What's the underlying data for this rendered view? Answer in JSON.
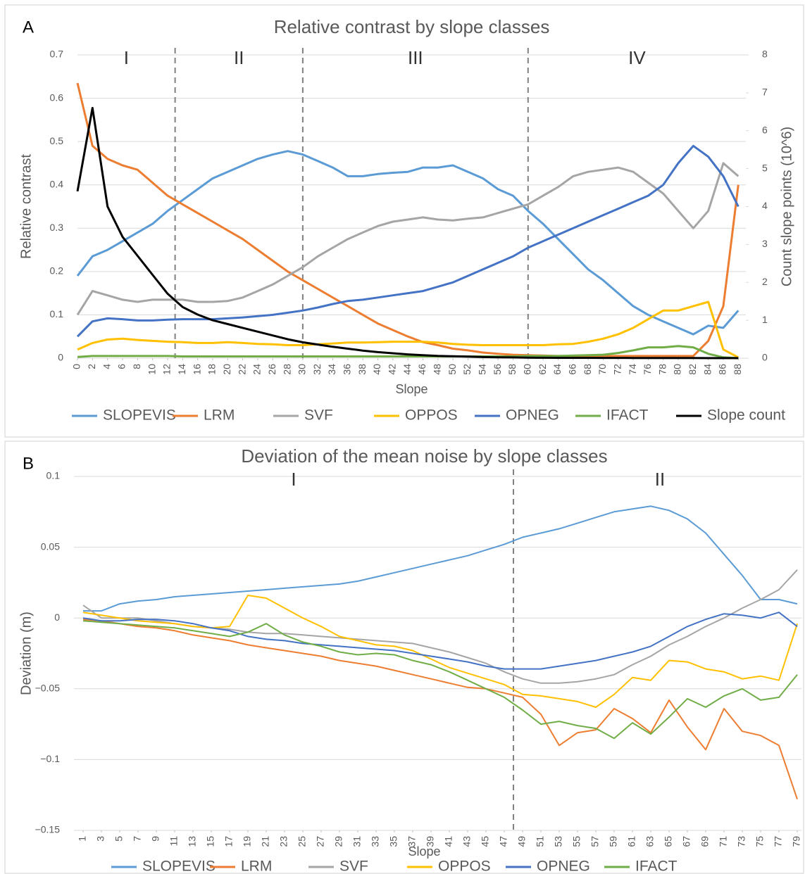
{
  "chart_data": [
    {
      "type": "line",
      "panel_label": "A",
      "title": "Relative contrast by slope classes",
      "x_label": "Slope",
      "y_label": "Relative contrast",
      "y2_label": "Count slope points (10^6)",
      "x": [
        0,
        2,
        4,
        6,
        8,
        10,
        12,
        14,
        16,
        18,
        20,
        22,
        24,
        26,
        28,
        30,
        32,
        34,
        36,
        38,
        40,
        42,
        44,
        46,
        48,
        50,
        52,
        54,
        56,
        58,
        60,
        62,
        64,
        66,
        68,
        70,
        72,
        74,
        76,
        78,
        80,
        82,
        84,
        86,
        88
      ],
      "xlim": [
        0,
        89
      ],
      "xticks": [
        0,
        2,
        4,
        6,
        8,
        10,
        12,
        14,
        16,
        18,
        20,
        22,
        24,
        26,
        28,
        30,
        32,
        34,
        36,
        38,
        40,
        42,
        44,
        46,
        48,
        50,
        52,
        54,
        56,
        58,
        60,
        62,
        64,
        66,
        68,
        70,
        72,
        74,
        76,
        78,
        80,
        82,
        84,
        86,
        88
      ],
      "ylim": [
        0,
        0.7
      ],
      "yticks": [
        0,
        0.1,
        0.2,
        0.3,
        0.4,
        0.5,
        0.6,
        0.7
      ],
      "y2lim": [
        0,
        8
      ],
      "y2ticks": [
        0,
        1,
        2,
        3,
        4,
        5,
        6,
        7,
        8
      ],
      "grid": true,
      "dividers": [
        13,
        30,
        60
      ],
      "class_labels": [
        "I",
        "II",
        "III",
        "IV"
      ],
      "series": [
        {
          "name": "SLOPEVIS",
          "color": "#5b9bd5",
          "values": [
            0.19,
            0.235,
            0.25,
            0.27,
            0.29,
            0.31,
            0.34,
            0.365,
            0.39,
            0.415,
            0.43,
            0.445,
            0.46,
            0.47,
            0.478,
            0.47,
            0.455,
            0.44,
            0.42,
            0.42,
            0.425,
            0.428,
            0.43,
            0.44,
            0.44,
            0.445,
            0.43,
            0.415,
            0.39,
            0.375,
            0.34,
            0.31,
            0.275,
            0.24,
            0.205,
            0.18,
            0.15,
            0.12,
            0.1,
            0.085,
            0.07,
            0.055,
            0.075,
            0.07,
            0.11
          ]
        },
        {
          "name": "LRM",
          "color": "#ed7d31",
          "values": [
            0.635,
            0.49,
            0.46,
            0.445,
            0.435,
            0.405,
            0.375,
            0.355,
            0.335,
            0.315,
            0.295,
            0.275,
            0.25,
            0.225,
            0.2,
            0.18,
            0.16,
            0.14,
            0.12,
            0.1,
            0.08,
            0.065,
            0.05,
            0.037,
            0.03,
            0.022,
            0.018,
            0.013,
            0.01,
            0.008,
            0.007,
            0.006,
            0.005,
            0.005,
            0.005,
            0.005,
            0.005,
            0.005,
            0.005,
            0.005,
            0.005,
            0.005,
            0.04,
            0.12,
            0.4
          ]
        },
        {
          "name": "SVF",
          "color": "#a5a5a5",
          "values": [
            0.1,
            0.155,
            0.145,
            0.135,
            0.13,
            0.135,
            0.135,
            0.135,
            0.13,
            0.13,
            0.132,
            0.14,
            0.155,
            0.17,
            0.19,
            0.21,
            0.235,
            0.255,
            0.275,
            0.29,
            0.305,
            0.315,
            0.32,
            0.325,
            0.32,
            0.318,
            0.322,
            0.325,
            0.335,
            0.345,
            0.355,
            0.375,
            0.395,
            0.42,
            0.43,
            0.435,
            0.44,
            0.43,
            0.405,
            0.38,
            0.34,
            0.3,
            0.34,
            0.45,
            0.42
          ]
        },
        {
          "name": "OPPOS",
          "color": "#ffc000",
          "values": [
            0.02,
            0.035,
            0.043,
            0.045,
            0.042,
            0.04,
            0.038,
            0.037,
            0.035,
            0.035,
            0.037,
            0.035,
            0.033,
            0.032,
            0.03,
            0.03,
            0.032,
            0.034,
            0.036,
            0.036,
            0.037,
            0.038,
            0.038,
            0.038,
            0.036,
            0.033,
            0.031,
            0.03,
            0.03,
            0.03,
            0.03,
            0.03,
            0.032,
            0.033,
            0.038,
            0.045,
            0.055,
            0.07,
            0.09,
            0.11,
            0.11,
            0.12,
            0.13,
            0.02,
            0.002
          ]
        },
        {
          "name": "OPNEG",
          "color": "#4472c4",
          "values": [
            0.05,
            0.085,
            0.092,
            0.09,
            0.087,
            0.087,
            0.089,
            0.09,
            0.09,
            0.09,
            0.092,
            0.094,
            0.097,
            0.1,
            0.105,
            0.11,
            0.117,
            0.125,
            0.132,
            0.135,
            0.14,
            0.145,
            0.15,
            0.155,
            0.165,
            0.175,
            0.19,
            0.205,
            0.22,
            0.235,
            0.255,
            0.27,
            0.285,
            0.3,
            0.315,
            0.33,
            0.345,
            0.36,
            0.375,
            0.4,
            0.45,
            0.49,
            0.465,
            0.42,
            0.35
          ]
        },
        {
          "name": "IFACT",
          "color": "#70ad47",
          "values": [
            0.003,
            0.005,
            0.005,
            0.005,
            0.005,
            0.005,
            0.005,
            0.004,
            0.004,
            0.004,
            0.004,
            0.004,
            0.004,
            0.004,
            0.004,
            0.004,
            0.004,
            0.004,
            0.004,
            0.004,
            0.004,
            0.004,
            0.004,
            0.004,
            0.004,
            0.004,
            0.004,
            0.004,
            0.004,
            0.004,
            0.005,
            0.005,
            0.005,
            0.006,
            0.007,
            0.008,
            0.012,
            0.018,
            0.025,
            0.025,
            0.028,
            0.025,
            0.01,
            0.002,
            0
          ]
        },
        {
          "name": "Slope count",
          "color": "#000000",
          "axis": "y2",
          "values": [
            4.4,
            6.6,
            4.0,
            3.2,
            2.7,
            2.2,
            1.7,
            1.35,
            1.15,
            1.0,
            0.9,
            0.8,
            0.7,
            0.6,
            0.5,
            0.42,
            0.36,
            0.3,
            0.25,
            0.2,
            0.16,
            0.13,
            0.1,
            0.08,
            0.06,
            0.05,
            0.04,
            0.03,
            0.025,
            0.02,
            0.015,
            0.012,
            0.01,
            0.01,
            0.01,
            0.008,
            0.008,
            0.006,
            0.005,
            0.005,
            0.004,
            0.003,
            0.002,
            0.002,
            0.001
          ]
        }
      ]
    },
    {
      "type": "line",
      "panel_label": "B",
      "title": "Deviation of the mean noise by slope classes",
      "x_label": "Slope",
      "y_label": "Deviation (m)",
      "x": [
        1,
        3,
        5,
        7,
        9,
        11,
        13,
        15,
        17,
        19,
        21,
        23,
        25,
        27,
        29,
        31,
        33,
        35,
        37,
        39,
        41,
        43,
        45,
        47,
        49,
        51,
        53,
        55,
        57,
        59,
        61,
        63,
        65,
        67,
        69,
        71,
        73,
        75,
        77,
        79
      ],
      "xlim": [
        0,
        80
      ],
      "xticks": [
        1,
        3,
        5,
        7,
        9,
        11,
        13,
        15,
        17,
        19,
        21,
        23,
        25,
        27,
        29,
        31,
        33,
        35,
        37,
        39,
        41,
        43,
        45,
        47,
        49,
        51,
        53,
        55,
        57,
        59,
        61,
        63,
        65,
        67,
        69,
        71,
        73,
        75,
        77,
        79
      ],
      "ylim": [
        -0.15,
        0.1
      ],
      "yticks": [
        {
          "value": -0.15,
          "label": "−0.15"
        },
        {
          "value": -0.1,
          "label": "−0.1"
        },
        {
          "value": -0.05,
          "label": "−0.05"
        },
        0,
        0.05,
        0.1
      ],
      "grid": true,
      "dividers": [
        48
      ],
      "class_labels": [
        "I",
        "II"
      ],
      "series": [
        {
          "name": "SLOPEVIS",
          "color": "#5b9bd5",
          "values": [
            0.005,
            0.005,
            0.01,
            0.012,
            0.013,
            0.015,
            0.016,
            0.017,
            0.018,
            0.019,
            0.02,
            0.021,
            0.022,
            0.023,
            0.024,
            0.026,
            0.029,
            0.032,
            0.035,
            0.038,
            0.041,
            0.044,
            0.048,
            0.052,
            0.057,
            0.06,
            0.063,
            0.067,
            0.071,
            0.075,
            0.077,
            0.079,
            0.076,
            0.07,
            0.06,
            0.045,
            0.03,
            0.013,
            0.013,
            0.01
          ]
        },
        {
          "name": "LRM",
          "color": "#ed7d31",
          "values": [
            -0.001,
            -0.002,
            -0.004,
            -0.006,
            -0.007,
            -0.009,
            -0.012,
            -0.014,
            -0.016,
            -0.019,
            -0.021,
            -0.023,
            -0.025,
            -0.027,
            -0.03,
            -0.032,
            -0.034,
            -0.037,
            -0.04,
            -0.043,
            -0.046,
            -0.049,
            -0.05,
            -0.053,
            -0.056,
            -0.068,
            -0.09,
            -0.081,
            -0.079,
            -0.064,
            -0.071,
            -0.081,
            -0.058,
            -0.077,
            -0.093,
            -0.064,
            -0.08,
            -0.083,
            -0.09,
            -0.128
          ]
        },
        {
          "name": "SVF",
          "color": "#a5a5a5",
          "values": [
            0.009,
            0.0,
            0.0,
            0.0,
            -0.002,
            -0.004,
            -0.006,
            -0.007,
            -0.008,
            -0.01,
            -0.011,
            -0.011,
            -0.012,
            -0.013,
            -0.014,
            -0.015,
            -0.016,
            -0.017,
            -0.018,
            -0.021,
            -0.024,
            -0.028,
            -0.032,
            -0.038,
            -0.043,
            -0.046,
            -0.046,
            -0.045,
            -0.043,
            -0.04,
            -0.033,
            -0.027,
            -0.019,
            -0.013,
            -0.006,
            0.0,
            0.007,
            0.013,
            0.02,
            0.034
          ]
        },
        {
          "name": "OPPOS",
          "color": "#ffc000",
          "values": [
            0.004,
            0.002,
            0.0,
            -0.002,
            -0.003,
            -0.004,
            -0.006,
            -0.007,
            -0.006,
            0.016,
            0.014,
            0.007,
            0.0,
            -0.006,
            -0.013,
            -0.016,
            -0.019,
            -0.02,
            -0.023,
            -0.029,
            -0.035,
            -0.039,
            -0.043,
            -0.047,
            -0.054,
            -0.055,
            -0.057,
            -0.059,
            -0.063,
            -0.054,
            -0.042,
            -0.044,
            -0.03,
            -0.031,
            -0.036,
            -0.038,
            -0.043,
            -0.041,
            -0.044,
            -0.004
          ]
        },
        {
          "name": "OPNEG",
          "color": "#4472c4",
          "values": [
            0.0,
            -0.002,
            -0.002,
            -0.001,
            -0.001,
            -0.002,
            -0.004,
            -0.007,
            -0.009,
            -0.013,
            -0.015,
            -0.016,
            -0.018,
            -0.019,
            -0.02,
            -0.021,
            -0.022,
            -0.023,
            -0.025,
            -0.027,
            -0.029,
            -0.031,
            -0.034,
            -0.036,
            -0.036,
            -0.036,
            -0.034,
            -0.032,
            -0.03,
            -0.027,
            -0.024,
            -0.02,
            -0.013,
            -0.006,
            -0.001,
            0.003,
            0.002,
            0.0,
            0.004,
            -0.006
          ]
        },
        {
          "name": "IFACT",
          "color": "#70ad47",
          "values": [
            -0.002,
            -0.003,
            -0.004,
            -0.005,
            -0.006,
            -0.007,
            -0.009,
            -0.011,
            -0.013,
            -0.01,
            -0.004,
            -0.012,
            -0.017,
            -0.02,
            -0.024,
            -0.026,
            -0.025,
            -0.026,
            -0.03,
            -0.033,
            -0.038,
            -0.044,
            -0.05,
            -0.056,
            -0.065,
            -0.075,
            -0.073,
            -0.076,
            -0.078,
            -0.085,
            -0.074,
            -0.082,
            -0.07,
            -0.057,
            -0.063,
            -0.055,
            -0.05,
            -0.058,
            -0.056,
            -0.04
          ]
        }
      ]
    }
  ]
}
